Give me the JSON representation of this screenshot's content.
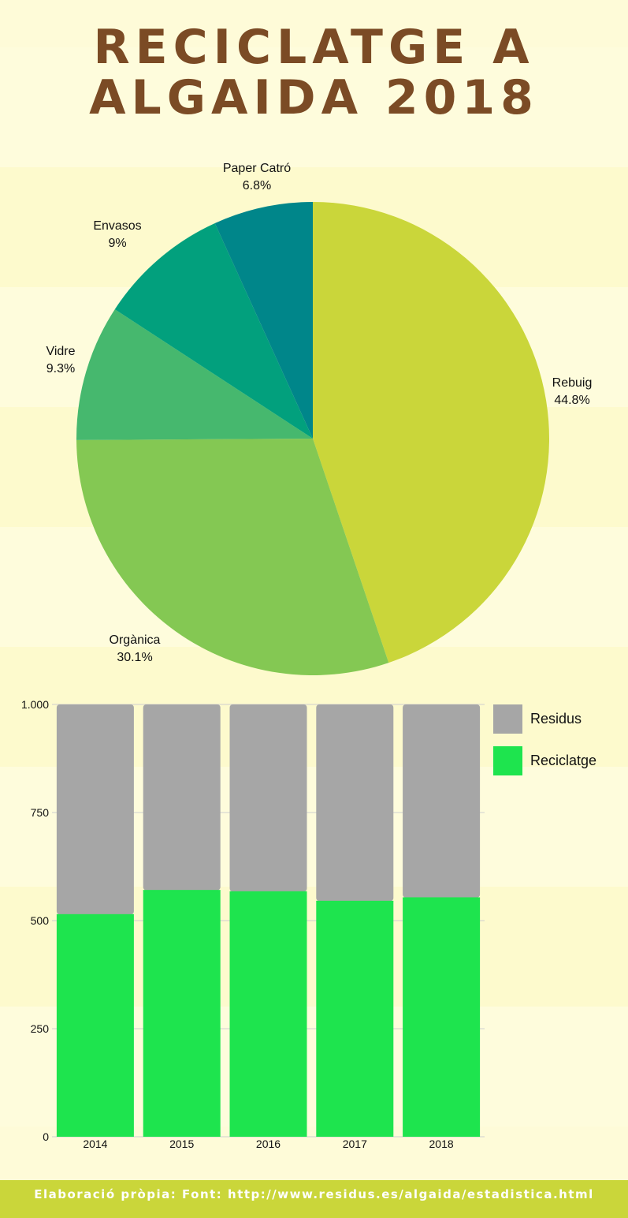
{
  "title": {
    "line1": "RECICLATGE A",
    "line2": "ALGAIDA 2018",
    "color": "#7b4b25"
  },
  "footer": {
    "text": "Elaboració pròpia: Font: http://www.residus.es/algaida/estadistica.html",
    "background": "#cad63a"
  },
  "chart_data": [
    {
      "type": "pie",
      "slices": [
        {
          "label": "Rebuig",
          "value_label": "44.8%",
          "value": 44.8,
          "color": "#cad63a"
        },
        {
          "label": "Orgànica",
          "value_label": "30.1%",
          "value": 30.1,
          "color": "#84c853"
        },
        {
          "label": "Vidre",
          "value_label": "9.3%",
          "value": 9.3,
          "color": "#46b86e"
        },
        {
          "label": "Envasos",
          "value_label": "9%",
          "value": 9,
          "color": "#02a07d"
        },
        {
          "label": "Paper Catró",
          "value_label": "6.8%",
          "value": 6.8,
          "color": "#00868a"
        }
      ]
    },
    {
      "type": "bar",
      "stacked": true,
      "categories": [
        "2014",
        "2015",
        "2016",
        "2017",
        "2018"
      ],
      "series": [
        {
          "name": "Reciclatge",
          "values": [
            514,
            570,
            567,
            545,
            553
          ],
          "color": "#1ee44e"
        },
        {
          "name": "Residus",
          "values": [
            486,
            430,
            433,
            455,
            447
          ],
          "color": "#a6a6a6"
        }
      ],
      "legend_order": [
        "Residus",
        "Reciclatge"
      ],
      "legend_position": "right",
      "ylim": [
        0,
        1000
      ],
      "yticks": [
        0,
        250,
        500,
        750,
        1000
      ],
      "ytick_labels": [
        "0",
        "250",
        "500",
        "750",
        "1.000"
      ],
      "grid": true
    }
  ]
}
